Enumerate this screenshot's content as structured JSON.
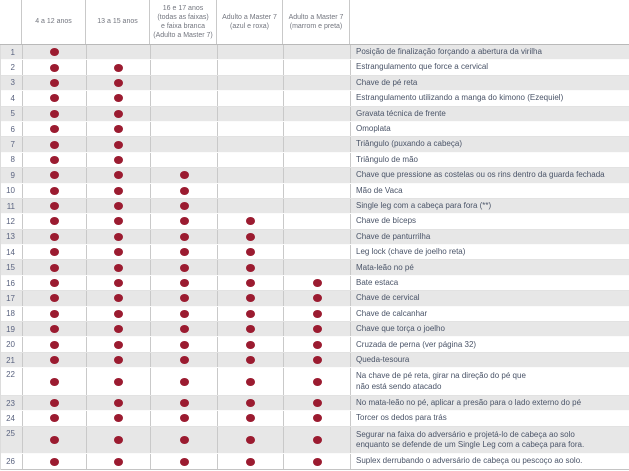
{
  "table": {
    "accent_dot_color": "#9b1b30",
    "stripe_color": "#e7e7e7",
    "columns": [
      {
        "label": "4 a 12 anos"
      },
      {
        "label": "13 a 15 anos"
      },
      {
        "label": "16 e 17 anos\n(todas as faixas)\ne faixa branca\n(Adulto a Master 7)"
      },
      {
        "label": "Adulto a Master 7\n(azul e roxa)"
      },
      {
        "label": "Adulto a Master 7\n(marrom e preta)"
      }
    ],
    "rows": [
      {
        "num": "1",
        "marks": [
          1,
          0,
          0,
          0,
          0
        ],
        "desc": "Posição de finalização forçando a abertura da virilha"
      },
      {
        "num": "2",
        "marks": [
          1,
          1,
          0,
          0,
          0
        ],
        "desc": "Estrangulamento que force a cervical"
      },
      {
        "num": "3",
        "marks": [
          1,
          1,
          0,
          0,
          0
        ],
        "desc": "Chave de pé reta"
      },
      {
        "num": "4",
        "marks": [
          1,
          1,
          0,
          0,
          0
        ],
        "desc": "Estrangulamento utilizando a manga do kimono (Ezequiel)"
      },
      {
        "num": "5",
        "marks": [
          1,
          1,
          0,
          0,
          0
        ],
        "desc": "Gravata técnica de frente"
      },
      {
        "num": "6",
        "marks": [
          1,
          1,
          0,
          0,
          0
        ],
        "desc": "Omoplata"
      },
      {
        "num": "7",
        "marks": [
          1,
          1,
          0,
          0,
          0
        ],
        "desc": "Triângulo (puxando a cabeça)"
      },
      {
        "num": "8",
        "marks": [
          1,
          1,
          0,
          0,
          0
        ],
        "desc": "Triângulo de mão"
      },
      {
        "num": "9",
        "marks": [
          1,
          1,
          1,
          0,
          0
        ],
        "desc": "Chave que pressione as costelas ou os rins dentro da guarda fechada"
      },
      {
        "num": "10",
        "marks": [
          1,
          1,
          1,
          0,
          0
        ],
        "desc": "Mão de Vaca"
      },
      {
        "num": "11",
        "marks": [
          1,
          1,
          1,
          0,
          0
        ],
        "desc": "Single leg com a cabeça para fora (**)"
      },
      {
        "num": "12",
        "marks": [
          1,
          1,
          1,
          1,
          0
        ],
        "desc": "Chave de bíceps"
      },
      {
        "num": "13",
        "marks": [
          1,
          1,
          1,
          1,
          0
        ],
        "desc": "Chave de panturrilha"
      },
      {
        "num": "14",
        "marks": [
          1,
          1,
          1,
          1,
          0
        ],
        "desc": "Leg lock (chave de joelho reta)"
      },
      {
        "num": "15",
        "marks": [
          1,
          1,
          1,
          1,
          0
        ],
        "desc": "Mata-leão no pé"
      },
      {
        "num": "16",
        "marks": [
          1,
          1,
          1,
          1,
          1
        ],
        "desc": "Bate estaca"
      },
      {
        "num": "17",
        "marks": [
          1,
          1,
          1,
          1,
          1
        ],
        "desc": "Chave de cervical"
      },
      {
        "num": "18",
        "marks": [
          1,
          1,
          1,
          1,
          1
        ],
        "desc": "Chave de calcanhar"
      },
      {
        "num": "19",
        "marks": [
          1,
          1,
          1,
          1,
          1
        ],
        "desc": "Chave que torça o joelho"
      },
      {
        "num": "20",
        "marks": [
          1,
          1,
          1,
          1,
          1
        ],
        "desc": "Cruzada de perna (ver página 32)"
      },
      {
        "num": "21",
        "marks": [
          1,
          1,
          1,
          1,
          1
        ],
        "desc": "Queda-tesoura"
      },
      {
        "num": "22",
        "marks": [
          1,
          1,
          1,
          1,
          1
        ],
        "desc": "Na chave de pé reta, girar na direção do pé que\nnão está sendo atacado"
      },
      {
        "num": "23",
        "marks": [
          1,
          1,
          1,
          1,
          1
        ],
        "desc": "No mata-leão no pé, aplicar a presão para o lado externo do pé"
      },
      {
        "num": "24",
        "marks": [
          1,
          1,
          1,
          1,
          1
        ],
        "desc": "Torcer os dedos para trás"
      },
      {
        "num": "25",
        "marks": [
          1,
          1,
          1,
          1,
          1
        ],
        "desc": "Segurar na faixa do adversário e projetá-lo de cabeça ao solo\nenquanto se defende de um Single Leg com a cabeça para fora."
      },
      {
        "num": "26",
        "marks": [
          1,
          1,
          1,
          1,
          1
        ],
        "desc": "Suplex derrubando o adversário de cabeça ou pescoço ao solo."
      }
    ]
  }
}
